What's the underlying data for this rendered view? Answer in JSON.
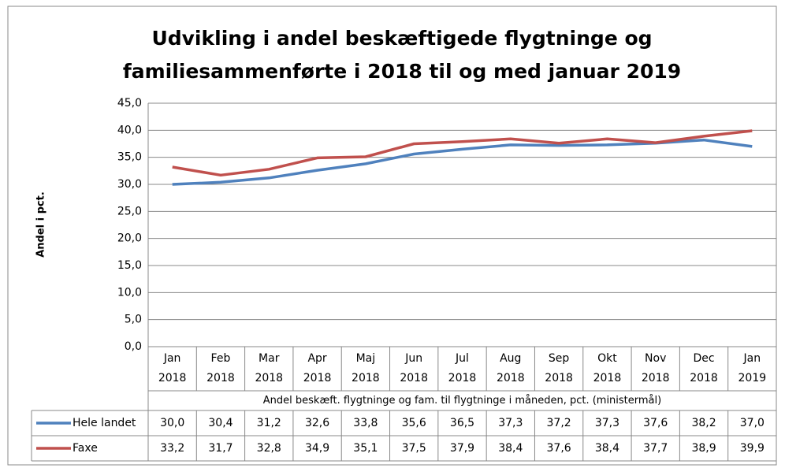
{
  "chart_data": {
    "type": "line",
    "title": "Udvikling i andel beskæftigede flygtninge og\nfamiliesammenførte  i 2018 til og med januar  2019",
    "y_label": "Andel i pct.",
    "x_label": "Andel beskæft. flygtninge og fam. til flygtninge i måneden, pct. (ministermål)",
    "categories": [
      "Jan\n2018",
      "Feb\n2018",
      "Mar\n2018",
      "Apr\n2018",
      "Maj\n2018",
      "Jun\n2018",
      "Jul\n2018",
      "Aug\n2018",
      "Sep\n2018",
      "Okt\n2018",
      "Nov\n2018",
      "Dec\n2018",
      "Jan\n2019"
    ],
    "series": [
      {
        "name": "Hele landet",
        "color": "#4f81bd",
        "values": [
          30.0,
          30.4,
          31.2,
          32.6,
          33.8,
          35.6,
          36.5,
          37.3,
          37.2,
          37.3,
          37.6,
          38.2,
          37.0
        ],
        "value_labels": [
          "30,0",
          "30,4",
          "31,2",
          "32,6",
          "33,8",
          "35,6",
          "36,5",
          "37,3",
          "37,2",
          "37,3",
          "37,6",
          "38,2",
          "37,0"
        ]
      },
      {
        "name": "Faxe",
        "color": "#c0504d",
        "values": [
          33.2,
          31.7,
          32.8,
          34.9,
          35.1,
          37.5,
          37.9,
          38.4,
          37.6,
          38.4,
          37.7,
          38.9,
          39.9
        ],
        "value_labels": [
          "33,2",
          "31,7",
          "32,8",
          "34,9",
          "35,1",
          "37,5",
          "37,9",
          "38,4",
          "37,6",
          "38,4",
          "37,7",
          "38,9",
          "39,9"
        ]
      }
    ],
    "ylim": [
      0,
      45
    ],
    "yticks": [
      {
        "value": 0,
        "label": "0,0"
      },
      {
        "value": 5,
        "label": "5,0"
      },
      {
        "value": 10,
        "label": "10,0"
      },
      {
        "value": 15,
        "label": "15,0"
      },
      {
        "value": 20,
        "label": "20,0"
      },
      {
        "value": 25,
        "label": "25,0"
      },
      {
        "value": 30,
        "label": "30,0"
      },
      {
        "value": 35,
        "label": "35,0"
      },
      {
        "value": 40,
        "label": "40,0"
      },
      {
        "value": 45,
        "label": "45,0"
      }
    ],
    "grid": true
  }
}
